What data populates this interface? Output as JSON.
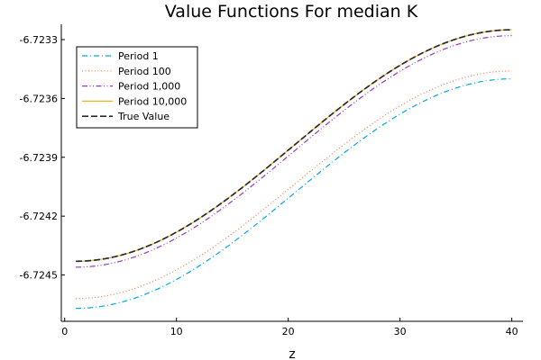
{
  "chart_data": {
    "type": "line",
    "title": "Value Functions For median K",
    "xlabel": "z",
    "ylabel": "",
    "xlim": [
      -0.3,
      41
    ],
    "ylim": [
      -6.724736,
      -6.723222
    ],
    "xticks": [
      0,
      10,
      20,
      30,
      40
    ],
    "xtick_labels": [
      "0",
      "10",
      "20",
      "30",
      "40"
    ],
    "yticks": [
      -6.7245,
      -6.7242,
      -6.7239,
      -6.7236,
      -6.7233
    ],
    "ytick_labels": [
      "-6.7245",
      "-6.7242",
      "-6.7239",
      "-6.7236",
      "-6.7233"
    ],
    "grid": false,
    "legend_position": "top-left",
    "x": [
      1,
      40
    ],
    "series": [
      {
        "name": "Period 1",
        "color": "#00a9e0",
        "dash": "dashdot",
        "y_start": -6.72467,
        "y_end": -6.7235
      },
      {
        "name": "Period 100",
        "color": "#f07e4c",
        "dash": "dot",
        "y_start": -6.72462,
        "y_end": -6.72346
      },
      {
        "name": "Period 1,000",
        "color": "#9b37c4",
        "dash": "dashdotdot",
        "y_start": -6.72446,
        "y_end": -6.72328
      },
      {
        "name": "Period 10,000",
        "color": "#f2b021",
        "dash": "solid",
        "y_start": -6.72443,
        "y_end": -6.72325
      },
      {
        "name": "True Value",
        "color": "#2b2b2b",
        "dash": "dash",
        "y_start": -6.72443,
        "y_end": -6.72325
      }
    ]
  }
}
